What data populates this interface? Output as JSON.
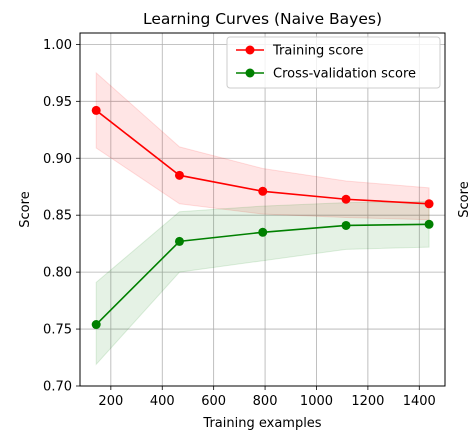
{
  "chart_data": {
    "type": "line",
    "title": "Learning Curves (Naive Bayes)",
    "xlabel": "Training examples",
    "ylabel": "Score",
    "right_clipped_label": "Score",
    "xlim": [
      80,
      1500
    ],
    "ylim": [
      0.7,
      1.01
    ],
    "xticks": [
      200,
      400,
      600,
      800,
      1000,
      1200,
      1400
    ],
    "yticks": [
      0.7,
      0.75,
      0.8,
      0.85,
      0.9,
      0.95,
      1.0
    ],
    "ytick_labels": [
      "0.70",
      "0.75",
      "0.80",
      "0.85",
      "0.90",
      "0.95",
      "1.00"
    ],
    "grid": true,
    "legend_position": "top-right",
    "x": [
      143,
      467,
      791,
      1115,
      1438
    ],
    "series": [
      {
        "name": "Training score",
        "color": "#ff0000",
        "fill_color": "#ff0000",
        "values": [
          0.942,
          0.885,
          0.871,
          0.864,
          0.86
        ],
        "lower": [
          0.909,
          0.86,
          0.851,
          0.848,
          0.846
        ],
        "upper": [
          0.975,
          0.91,
          0.891,
          0.88,
          0.874
        ]
      },
      {
        "name": "Cross-validation score",
        "color": "#008000",
        "fill_color": "#008000",
        "values": [
          0.754,
          0.827,
          0.835,
          0.841,
          0.842
        ],
        "lower": [
          0.719,
          0.8,
          0.81,
          0.82,
          0.822
        ],
        "upper": [
          0.791,
          0.853,
          0.858,
          0.861,
          0.862
        ]
      }
    ]
  }
}
